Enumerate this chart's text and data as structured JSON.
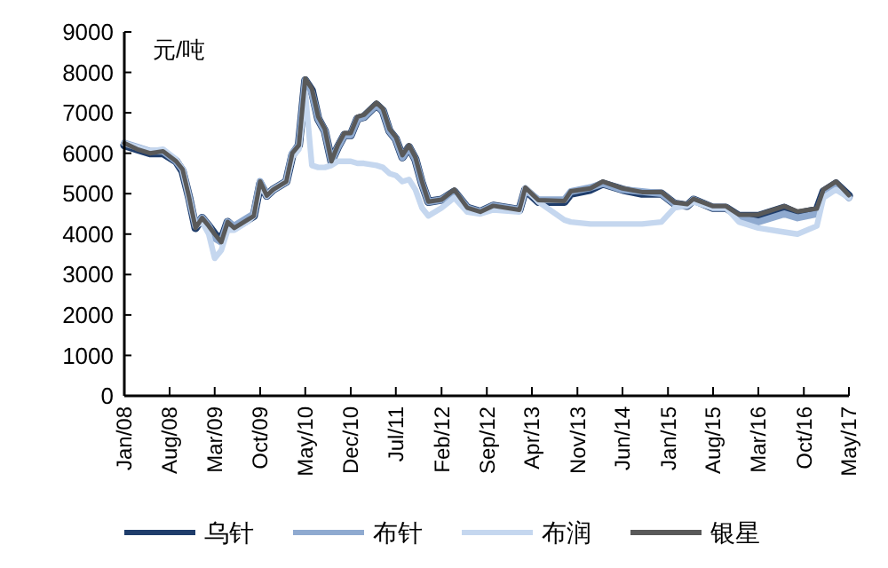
{
  "chart_data": {
    "type": "line",
    "ylabel": "元/吨",
    "x": [
      "2008-01",
      "2008-03",
      "2008-05",
      "2008-07",
      "2008-09",
      "2008-10",
      "2008-11",
      "2008-12",
      "2009-01",
      "2009-02",
      "2009-03",
      "2009-04",
      "2009-05",
      "2009-06",
      "2009-08",
      "2009-09",
      "2009-10",
      "2009-11",
      "2009-12",
      "2010-02",
      "2010-03",
      "2010-04",
      "2010-05",
      "2010-06",
      "2010-07",
      "2010-08",
      "2010-09",
      "2010-10",
      "2010-11",
      "2010-12",
      "2011-01",
      "2011-02",
      "2011-04",
      "2011-05",
      "2011-06",
      "2011-07",
      "2011-08",
      "2011-09",
      "2011-10",
      "2011-11",
      "2011-12",
      "2012-02",
      "2012-04",
      "2012-06",
      "2012-08",
      "2012-10",
      "2013-02",
      "2013-03",
      "2013-05",
      "2013-09",
      "2013-10",
      "2014-01",
      "2014-03",
      "2014-06",
      "2014-09",
      "2014-12",
      "2015-02",
      "2015-04",
      "2015-05",
      "2015-08",
      "2015-10",
      "2015-12",
      "2016-03",
      "2016-07",
      "2016-09",
      "2016-12",
      "2017-01",
      "2017-03",
      "2017-05"
    ],
    "series": [
      {
        "name": "乌针",
        "color": "#1f3d6b",
        "values": [
          6200,
          6100,
          6000,
          6000,
          5800,
          5550,
          4900,
          4150,
          4400,
          4200,
          4000,
          3850,
          4300,
          4150,
          4350,
          4450,
          5250,
          4950,
          5100,
          5300,
          5950,
          6200,
          7800,
          7550,
          6850,
          6550,
          5800,
          6150,
          6450,
          6450,
          6850,
          6900,
          7200,
          7050,
          6550,
          6350,
          5900,
          6150,
          5850,
          5250,
          4800,
          4850,
          5050,
          4650,
          4550,
          4700,
          4600,
          5100,
          4800,
          4800,
          5000,
          5100,
          5250,
          5100,
          5000,
          5000,
          4750,
          4700,
          4850,
          4650,
          4650,
          4450,
          4450,
          4650,
          4500,
          4600,
          5050,
          5250,
          4950
        ]
      },
      {
        "name": "布针",
        "color": "#8faad0",
        "values": [
          6250,
          6150,
          6050,
          6050,
          5800,
          5600,
          4900,
          4200,
          4400,
          4200,
          3900,
          3800,
          4300,
          4200,
          4400,
          4500,
          5300,
          4950,
          5100,
          5300,
          6000,
          6200,
          7800,
          7500,
          6850,
          6550,
          5800,
          6150,
          6450,
          6450,
          6850,
          6900,
          7200,
          7050,
          6550,
          6350,
          5900,
          6150,
          5850,
          5250,
          4800,
          4850,
          5050,
          4650,
          4550,
          4700,
          4600,
          5100,
          4850,
          4850,
          5050,
          5150,
          5250,
          5100,
          5050,
          5000,
          4750,
          4700,
          4850,
          4650,
          4650,
          4400,
          4300,
          4500,
          4400,
          4500,
          5000,
          5200,
          4900
        ]
      },
      {
        "name": "布润",
        "color": "#c5d7ef",
        "values": [
          6250,
          6150,
          6050,
          6100,
          5850,
          5600,
          4900,
          4200,
          4300,
          4000,
          3400,
          3600,
          4100,
          4100,
          4300,
          4450,
          5200,
          4950,
          5100,
          5300,
          5900,
          6100,
          7500,
          5700,
          5650,
          5650,
          5700,
          5800,
          5800,
          5800,
          5750,
          5750,
          5700,
          5650,
          5500,
          5450,
          5300,
          5350,
          5100,
          4650,
          4450,
          4650,
          4900,
          4550,
          4500,
          4600,
          4550,
          5150,
          4800,
          4350,
          4300,
          4250,
          4250,
          4250,
          4250,
          4300,
          4650,
          4700,
          4800,
          4650,
          4650,
          4300,
          4150,
          4050,
          4000,
          4200,
          4900,
          5100,
          4900
        ]
      },
      {
        "name": "银星",
        "color": "#595959",
        "values": [
          6250,
          6100,
          6000,
          6050,
          5800,
          5600,
          4900,
          4150,
          4400,
          4200,
          4000,
          3800,
          4300,
          4150,
          4350,
          4450,
          5300,
          4950,
          5100,
          5300,
          6000,
          6200,
          7850,
          7600,
          6900,
          6600,
          5800,
          6200,
          6500,
          6500,
          6900,
          6950,
          7250,
          7100,
          6600,
          6400,
          5950,
          6200,
          5900,
          5300,
          4800,
          4850,
          5100,
          4650,
          4550,
          4700,
          4600,
          5150,
          4840,
          4820,
          5060,
          5130,
          5300,
          5130,
          5040,
          5040,
          4780,
          4740,
          4870,
          4690,
          4690,
          4480,
          4480,
          4690,
          4560,
          4630,
          5100,
          5300,
          4960
        ]
      }
    ],
    "xlim": [
      "2008-01",
      "2017-05"
    ],
    "xticks": [
      {
        "value": "2008-01",
        "label": "Jan/08"
      },
      {
        "value": "2008-08",
        "label": "Aug/08"
      },
      {
        "value": "2009-03",
        "label": "Mar/09"
      },
      {
        "value": "2009-10",
        "label": "Oct/09"
      },
      {
        "value": "2010-05",
        "label": "May/10"
      },
      {
        "value": "2010-12",
        "label": "Dec/10"
      },
      {
        "value": "2011-07",
        "label": "Jul/11"
      },
      {
        "value": "2012-02",
        "label": "Feb/12"
      },
      {
        "value": "2012-09",
        "label": "Sep/12"
      },
      {
        "value": "2013-04",
        "label": "Apr/13"
      },
      {
        "value": "2013-11",
        "label": "Nov/13"
      },
      {
        "value": "2014-06",
        "label": "Jun/14"
      },
      {
        "value": "2015-01",
        "label": "Jan/15"
      },
      {
        "value": "2015-08",
        "label": "Aug/15"
      },
      {
        "value": "2016-03",
        "label": "Mar/16"
      },
      {
        "value": "2016-10",
        "label": "Oct/16"
      },
      {
        "value": "2017-05",
        "label": "May/17"
      }
    ],
    "ylim": [
      0,
      9000
    ],
    "yticks": [
      0,
      1000,
      2000,
      3000,
      4000,
      5000,
      6000,
      7000,
      8000,
      9000
    ],
    "grid": false,
    "legend": "bottom",
    "marker": "none",
    "line_style": "solid"
  }
}
